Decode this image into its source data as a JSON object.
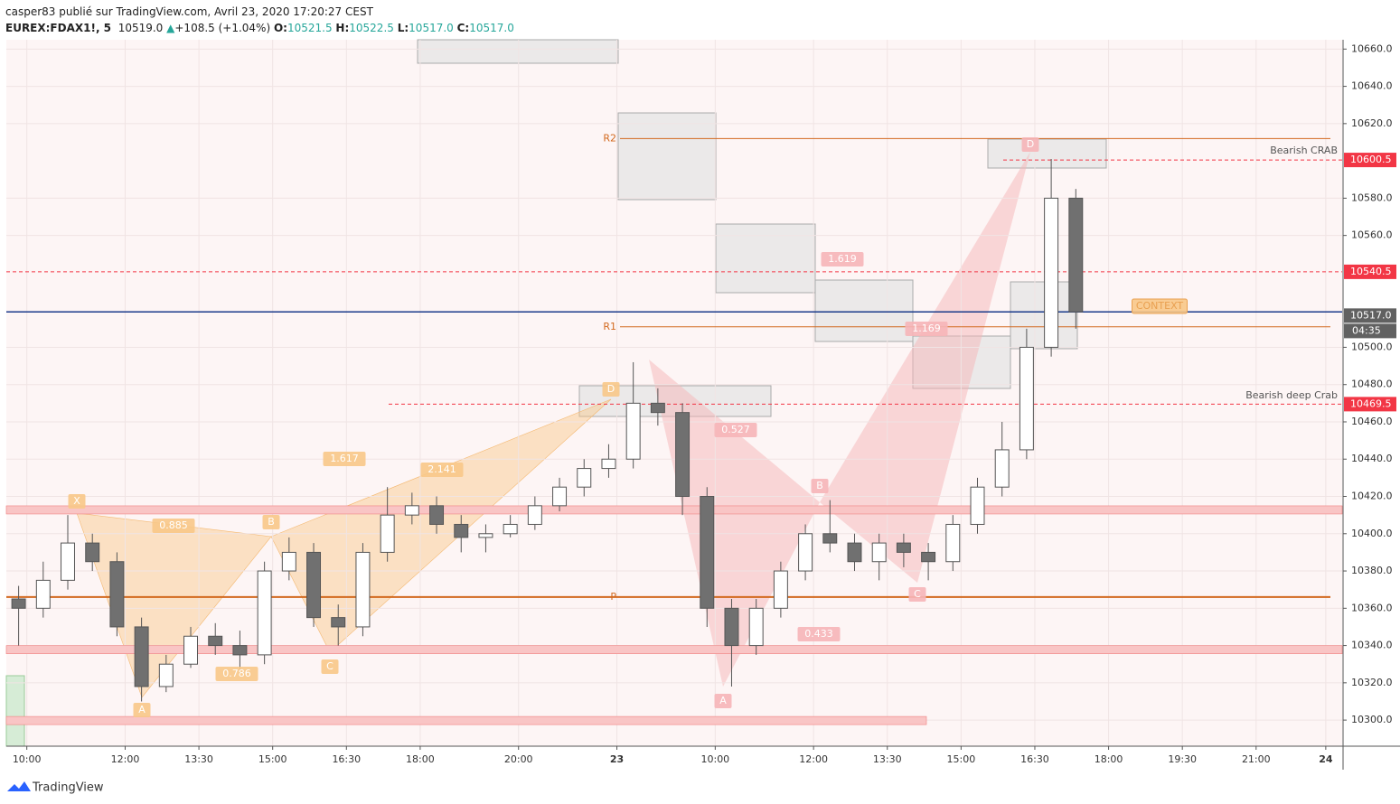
{
  "header": {
    "author_line": "casper83 publié sur TradingView.com, Avril 23, 2020 17:20:27 CEST",
    "symbol": "EUREX:FDAX1!, 5",
    "last": "10519.0",
    "arrow": "▲",
    "change": "+108.5 (+1.04%)",
    "o_label": "O:",
    "o": "10521.5",
    "h_label": "H:",
    "h": "10522.5",
    "l_label": "L:",
    "l": "10517.0",
    "c_label": "C:",
    "c": "10517.0"
  },
  "footer": {
    "brand": "TradingView"
  },
  "chart_data": {
    "type": "candlestick",
    "x": [
      3,
      9,
      15,
      21,
      27,
      33,
      39,
      45,
      51,
      57,
      63,
      69,
      75,
      81,
      87,
      93,
      99,
      105,
      111,
      117,
      123,
      129,
      135,
      141,
      147,
      153,
      159,
      165,
      171,
      177,
      183,
      189,
      195,
      201,
      207,
      213,
      219,
      225,
      231,
      237,
      243,
      249,
      255,
      261
    ],
    "open": [
      10365,
      10360,
      10375,
      10395,
      10385,
      10350,
      10318,
      10330,
      10345,
      10340,
      10335,
      10380,
      10390,
      10355,
      10350,
      10390,
      10410,
      10415,
      10405,
      10398,
      10400,
      10405,
      10415,
      10425,
      10435,
      10440,
      10470,
      10465,
      10420,
      10360,
      10340,
      10360,
      10380,
      10400,
      10395,
      10385,
      10395,
      10390,
      10385,
      10405,
      10425,
      10445,
      10500,
      10580
    ],
    "high": [
      10372,
      10385,
      10410,
      10400,
      10390,
      10355,
      10335,
      10350,
      10352,
      10348,
      10385,
      10398,
      10395,
      10362,
      10395,
      10425,
      10422,
      10420,
      10410,
      10405,
      10410,
      10420,
      10430,
      10440,
      10448,
      10492,
      10478,
      10470,
      10425,
      10365,
      10365,
      10385,
      10405,
      10418,
      10400,
      10400,
      10400,
      10395,
      10410,
      10430,
      10460,
      10510,
      10601,
      10585
    ],
    "low": [
      10340,
      10355,
      10370,
      10380,
      10345,
      10310,
      10315,
      10328,
      10335,
      10325,
      10330,
      10375,
      10350,
      10340,
      10345,
      10385,
      10405,
      10400,
      10390,
      10390,
      10398,
      10402,
      10412,
      10420,
      10430,
      10435,
      10458,
      10410,
      10350,
      10318,
      10335,
      10355,
      10375,
      10390,
      10380,
      10375,
      10382,
      10375,
      10380,
      10400,
      10420,
      10440,
      10495,
      10510
    ],
    "close": [
      10360,
      10375,
      10395,
      10385,
      10350,
      10318,
      10330,
      10345,
      10340,
      10335,
      10380,
      10390,
      10355,
      10350,
      10390,
      10410,
      10415,
      10405,
      10398,
      10400,
      10405,
      10415,
      10425,
      10435,
      10440,
      10470,
      10465,
      10420,
      10360,
      10340,
      10360,
      10380,
      10400,
      10395,
      10385,
      10395,
      10390,
      10385,
      10405,
      10425,
      10445,
      10500,
      10580,
      10519
    ],
    "up_color": "#ffffff",
    "down_color": "#707070",
    "wick_color": "#555555",
    "xlim": [
      0,
      326
    ],
    "ylim": [
      10286,
      10665
    ],
    "xticks": [
      {
        "value": 5,
        "label": "10:00"
      },
      {
        "value": 29,
        "label": "12:00"
      },
      {
        "value": 47,
        "label": "13:30"
      },
      {
        "value": 65,
        "label": "15:00"
      },
      {
        "value": 83,
        "label": "16:30"
      },
      {
        "value": 101,
        "label": "18:00"
      },
      {
        "value": 125,
        "label": "20:00"
      },
      {
        "value": 149,
        "label": "23"
      },
      {
        "value": 173,
        "label": "10:00"
      },
      {
        "value": 197,
        "label": "12:00"
      },
      {
        "value": 215,
        "label": "13:30"
      },
      {
        "value": 233,
        "label": "15:00"
      },
      {
        "value": 251,
        "label": "16:30"
      },
      {
        "value": 269,
        "label": "18:00"
      },
      {
        "value": 287,
        "label": "19:30"
      },
      {
        "value": 305,
        "label": "21:00"
      },
      {
        "value": 322,
        "label": "24"
      }
    ],
    "yticks": [
      {
        "value": 10300,
        "label": "10300.0"
      },
      {
        "value": 10320,
        "label": "10320.0"
      },
      {
        "value": 10340,
        "label": "10340.0"
      },
      {
        "value": 10360,
        "label": "10360.0"
      },
      {
        "value": 10380,
        "label": "10380.0"
      },
      {
        "value": 10400,
        "label": "10400.0"
      },
      {
        "value": 10420,
        "label": "10420.0"
      },
      {
        "value": 10440,
        "label": "10440.0"
      },
      {
        "value": 10460,
        "label": "10460.0"
      },
      {
        "value": 10480,
        "label": "10480.0"
      },
      {
        "value": 10500,
        "label": "10500.0"
      },
      {
        "value": 10560,
        "label": "10560.0"
      },
      {
        "value": 10580,
        "label": "10580.0"
      },
      {
        "value": 10620,
        "label": "10620.0"
      },
      {
        "value": 10640,
        "label": "10640.0"
      },
      {
        "value": 10660,
        "label": "10660.0"
      }
    ],
    "grid": true,
    "price_tags": [
      {
        "value": 10600.5,
        "color": "#f23645"
      },
      {
        "value": 10540.5,
        "color": "#f23645"
      },
      {
        "value": 10469.5,
        "color": "#f23645"
      },
      {
        "value": 10517,
        "label": "10517.0",
        "color": "#616161"
      }
    ],
    "countdown": "04:35",
    "last_line": {
      "value": 10519,
      "color": "#1a3a8a"
    },
    "zones": [
      10413,
      10338,
      10300
    ],
    "pivots": [
      {
        "value": 10612,
        "label": "R2"
      },
      {
        "value": 10511,
        "label": "R1"
      },
      {
        "value": 10366,
        "label": "P"
      }
    ],
    "annotations": [
      "Bearish CRAB",
      "Bearish deep Crab",
      "CONTEXT",
      "X",
      "A",
      "B",
      "C",
      "D",
      "0.885",
      "1.617",
      "2.141",
      "0.786",
      "A",
      "B",
      "C",
      "D",
      "0.527",
      "1.619",
      "1.169",
      "0.433"
    ]
  }
}
